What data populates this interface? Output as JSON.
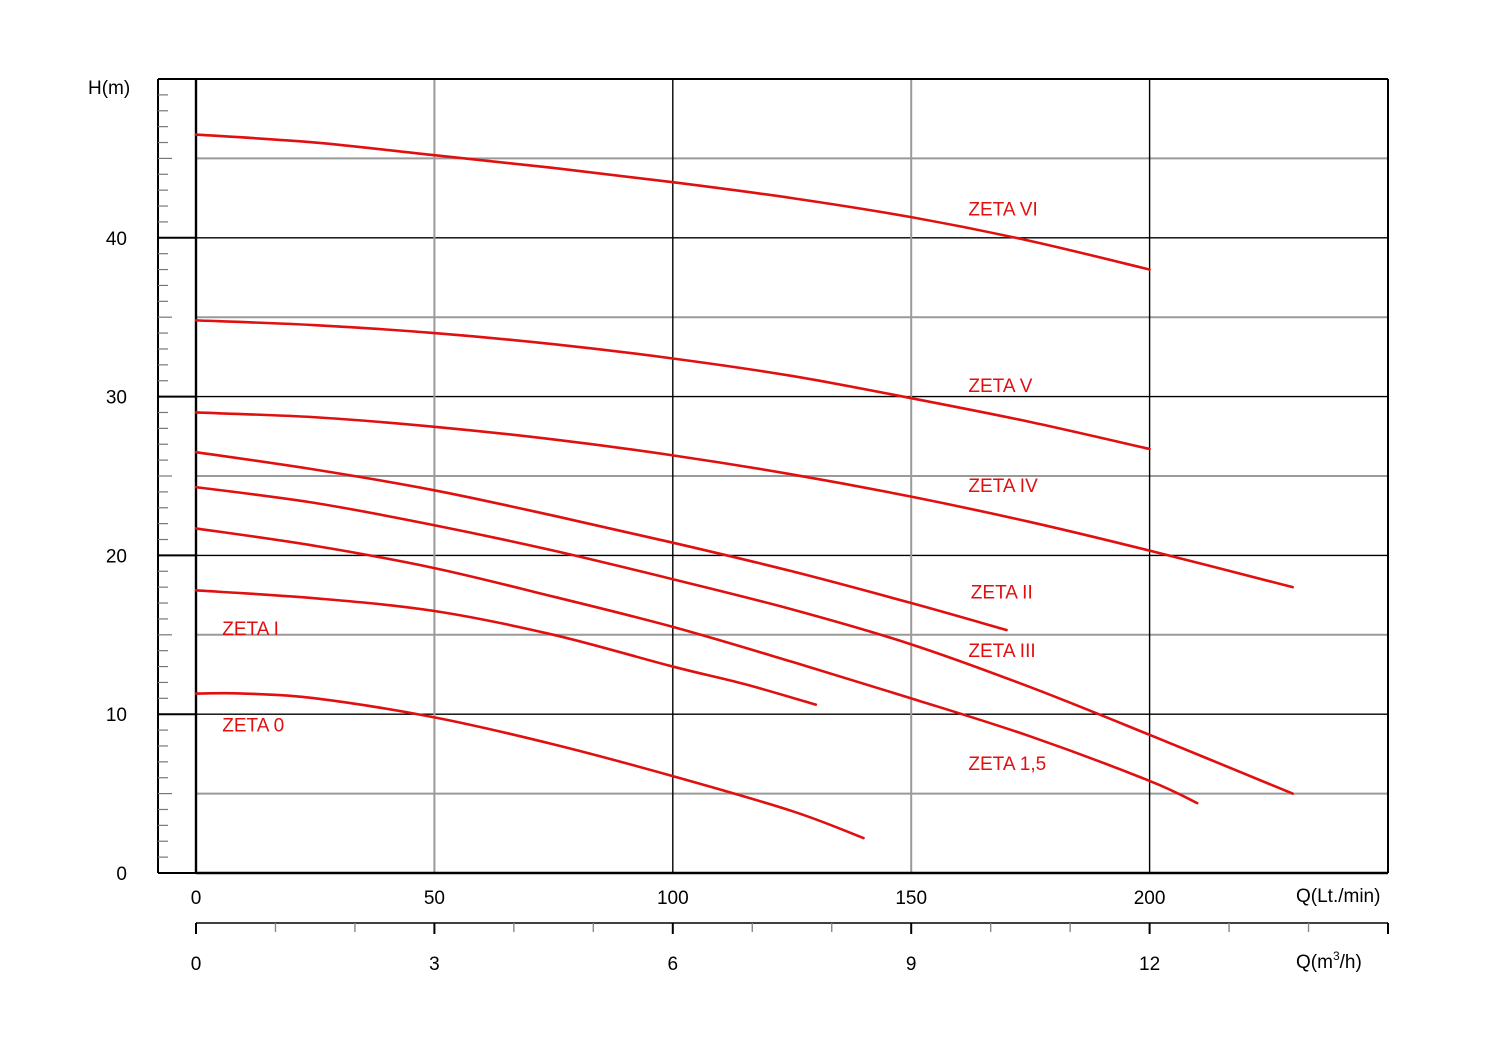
{
  "chart_data": {
    "type": "line",
    "ylabel": "H(m)",
    "xlabel": "Q(Lt./min)",
    "x2label_main": "Q(m",
    "x2label_sup": "3",
    "x2label_tail": "/h)",
    "xlim": [
      0,
      250
    ],
    "ylim": [
      0,
      50
    ],
    "x2lim": [
      0,
      15
    ],
    "y_ticks": [
      0,
      10,
      20,
      30,
      40
    ],
    "y_tick_labels": [
      "0",
      "10",
      "20",
      "30",
      "40"
    ],
    "x_ticks": [
      0,
      50,
      100,
      150,
      200
    ],
    "x_tick_labels": [
      "0",
      "50",
      "100",
      "150",
      "200"
    ],
    "x2_ticks": [
      0,
      3,
      6,
      9,
      12
    ],
    "x2_tick_labels": [
      "0",
      "3",
      "6",
      "9",
      "12"
    ],
    "grid": true,
    "series": [
      {
        "name": "ZETA VI",
        "x": [
          0,
          25,
          50,
          75,
          100,
          125,
          150,
          175,
          200
        ],
        "y": [
          46.5,
          46.0,
          45.2,
          44.4,
          43.5,
          42.5,
          41.3,
          39.8,
          38.0
        ]
      },
      {
        "name": "ZETA V",
        "x": [
          0,
          25,
          50,
          75,
          100,
          125,
          150,
          175,
          200
        ],
        "y": [
          34.8,
          34.5,
          34.0,
          33.3,
          32.4,
          31.3,
          29.9,
          28.4,
          26.7
        ]
      },
      {
        "name": "ZETA IV",
        "x": [
          0,
          25,
          50,
          75,
          100,
          125,
          150,
          175,
          200,
          230
        ],
        "y": [
          29.0,
          28.7,
          28.1,
          27.3,
          26.3,
          25.1,
          23.7,
          22.1,
          20.3,
          18.0
        ]
      },
      {
        "name": "ZETA II",
        "x": [
          0,
          25,
          50,
          75,
          100,
          125,
          150,
          170
        ],
        "y": [
          26.5,
          25.4,
          24.1,
          22.5,
          20.8,
          19.0,
          17.0,
          15.3
        ]
      },
      {
        "name": "ZETA III",
        "x": [
          0,
          25,
          50,
          75,
          100,
          125,
          150,
          175,
          200,
          230
        ],
        "y": [
          24.3,
          23.3,
          21.9,
          20.3,
          18.5,
          16.6,
          14.4,
          11.7,
          8.7,
          5.0
        ]
      },
      {
        "name": "ZETA 1,5",
        "x": [
          0,
          25,
          50,
          75,
          100,
          125,
          150,
          175,
          200,
          210
        ],
        "y": [
          21.7,
          20.6,
          19.2,
          17.4,
          15.5,
          13.3,
          11.0,
          8.6,
          5.8,
          4.4
        ]
      },
      {
        "name": "ZETA I",
        "x": [
          0,
          25,
          50,
          75,
          100,
          115,
          130
        ],
        "y": [
          17.8,
          17.3,
          16.5,
          15.0,
          13.0,
          11.9,
          10.6
        ]
      },
      {
        "name": "ZETA 0",
        "x": [
          0,
          10,
          25,
          50,
          75,
          100,
          125,
          140
        ],
        "y": [
          11.3,
          11.3,
          11.0,
          9.8,
          8.1,
          6.1,
          3.9,
          2.2
        ]
      }
    ],
    "labels": [
      {
        "text": "ZETA VI",
        "x": 162.0,
        "y": 41.4
      },
      {
        "text": "ZETA V",
        "x": 162.0,
        "y": 30.3
      },
      {
        "text": "ZETA IV",
        "x": 162.0,
        "y": 24.0
      },
      {
        "text": "ZETA II",
        "x": 162.5,
        "y": 17.3
      },
      {
        "text": "ZETA III",
        "x": 162.0,
        "y": 13.6
      },
      {
        "text": "ZETA 1,5",
        "x": 162.0,
        "y": 6.5
      },
      {
        "text": "ZETA I",
        "x": 5.5,
        "y": 15.0
      },
      {
        "text": "ZETA 0",
        "x": 5.5,
        "y": 8.9
      }
    ],
    "colors": {
      "curve": "#e11010",
      "grid_major": "#000000",
      "grid_minor": "#9a9a9a"
    }
  }
}
